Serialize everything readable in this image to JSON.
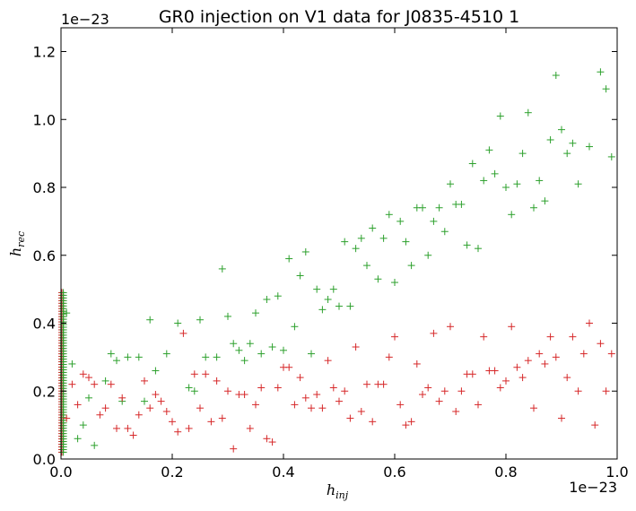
{
  "chart_data": {
    "type": "scatter",
    "title": "GR0 injection on V1 data for J0835-4510  1",
    "xlabel": "h_inj",
    "ylabel": "h_rec",
    "x_offset_text": "1e−23",
    "y_offset_text": "1e−23",
    "xlim": [
      0.0,
      1.0
    ],
    "ylim": [
      0.0,
      1.27
    ],
    "x_ticks": [
      "0.0",
      "0.2",
      "0.4",
      "0.6",
      "0.8",
      "1.0"
    ],
    "y_ticks": [
      "0.0",
      "0.2",
      "0.4",
      "0.6",
      "0.8",
      "1.0",
      "1.2"
    ],
    "x_tick_values": [
      0.0,
      0.2,
      0.4,
      0.6,
      0.8,
      1.0
    ],
    "y_tick_values": [
      0.0,
      0.2,
      0.4,
      0.6,
      0.8,
      1.0,
      1.2
    ],
    "marker": "+",
    "grid": false,
    "series": [
      {
        "color": "#2ca02c",
        "points": [
          [
            0.01,
            0.43
          ],
          [
            0.02,
            0.28
          ],
          [
            0.03,
            0.06
          ],
          [
            0.04,
            0.1
          ],
          [
            0.05,
            0.18
          ],
          [
            0.06,
            0.04
          ],
          [
            0.08,
            0.23
          ],
          [
            0.09,
            0.31
          ],
          [
            0.1,
            0.29
          ],
          [
            0.11,
            0.17
          ],
          [
            0.12,
            0.3
          ],
          [
            0.14,
            0.3
          ],
          [
            0.15,
            0.17
          ],
          [
            0.16,
            0.41
          ],
          [
            0.17,
            0.26
          ],
          [
            0.19,
            0.31
          ],
          [
            0.21,
            0.4
          ],
          [
            0.23,
            0.21
          ],
          [
            0.24,
            0.2
          ],
          [
            0.25,
            0.41
          ],
          [
            0.26,
            0.3
          ],
          [
            0.28,
            0.3
          ],
          [
            0.29,
            0.56
          ],
          [
            0.3,
            0.42
          ],
          [
            0.31,
            0.34
          ],
          [
            0.32,
            0.32
          ],
          [
            0.33,
            0.29
          ],
          [
            0.34,
            0.34
          ],
          [
            0.35,
            0.43
          ],
          [
            0.36,
            0.31
          ],
          [
            0.37,
            0.47
          ],
          [
            0.38,
            0.33
          ],
          [
            0.39,
            0.48
          ],
          [
            0.4,
            0.32
          ],
          [
            0.41,
            0.59
          ],
          [
            0.42,
            0.39
          ],
          [
            0.43,
            0.54
          ],
          [
            0.44,
            0.61
          ],
          [
            0.45,
            0.31
          ],
          [
            0.46,
            0.5
          ],
          [
            0.47,
            0.44
          ],
          [
            0.48,
            0.47
          ],
          [
            0.49,
            0.5
          ],
          [
            0.5,
            0.45
          ],
          [
            0.51,
            0.64
          ],
          [
            0.52,
            0.45
          ],
          [
            0.53,
            0.62
          ],
          [
            0.54,
            0.65
          ],
          [
            0.55,
            0.57
          ],
          [
            0.56,
            0.68
          ],
          [
            0.57,
            0.53
          ],
          [
            0.58,
            0.65
          ],
          [
            0.59,
            0.72
          ],
          [
            0.6,
            0.52
          ],
          [
            0.61,
            0.7
          ],
          [
            0.62,
            0.64
          ],
          [
            0.63,
            0.57
          ],
          [
            0.64,
            0.74
          ],
          [
            0.65,
            0.74
          ],
          [
            0.66,
            0.6
          ],
          [
            0.67,
            0.7
          ],
          [
            0.68,
            0.74
          ],
          [
            0.69,
            0.67
          ],
          [
            0.7,
            0.81
          ],
          [
            0.71,
            0.75
          ],
          [
            0.72,
            0.75
          ],
          [
            0.73,
            0.63
          ],
          [
            0.74,
            0.87
          ],
          [
            0.75,
            0.62
          ],
          [
            0.76,
            0.82
          ],
          [
            0.77,
            0.91
          ],
          [
            0.78,
            0.84
          ],
          [
            0.79,
            1.01
          ],
          [
            0.8,
            0.8
          ],
          [
            0.81,
            0.72
          ],
          [
            0.82,
            0.81
          ],
          [
            0.83,
            0.9
          ],
          [
            0.84,
            1.02
          ],
          [
            0.85,
            0.74
          ],
          [
            0.86,
            0.82
          ],
          [
            0.87,
            0.76
          ],
          [
            0.88,
            0.94
          ],
          [
            0.89,
            1.13
          ],
          [
            0.9,
            0.97
          ],
          [
            0.91,
            0.9
          ],
          [
            0.92,
            0.93
          ],
          [
            0.93,
            0.81
          ],
          [
            0.95,
            0.92
          ],
          [
            0.97,
            1.14
          ],
          [
            0.98,
            1.09
          ],
          [
            0.99,
            0.89
          ]
        ]
      },
      {
        "color": "#d62728",
        "points": [
          [
            0.01,
            0.12
          ],
          [
            0.02,
            0.22
          ],
          [
            0.03,
            0.16
          ],
          [
            0.04,
            0.25
          ],
          [
            0.05,
            0.24
          ],
          [
            0.06,
            0.22
          ],
          [
            0.07,
            0.13
          ],
          [
            0.08,
            0.15
          ],
          [
            0.09,
            0.22
          ],
          [
            0.1,
            0.09
          ],
          [
            0.11,
            0.18
          ],
          [
            0.12,
            0.09
          ],
          [
            0.13,
            0.07
          ],
          [
            0.14,
            0.13
          ],
          [
            0.15,
            0.23
          ],
          [
            0.16,
            0.15
          ],
          [
            0.17,
            0.19
          ],
          [
            0.18,
            0.17
          ],
          [
            0.19,
            0.14
          ],
          [
            0.2,
            0.11
          ],
          [
            0.21,
            0.08
          ],
          [
            0.22,
            0.37
          ],
          [
            0.23,
            0.09
          ],
          [
            0.24,
            0.25
          ],
          [
            0.25,
            0.15
          ],
          [
            0.26,
            0.25
          ],
          [
            0.27,
            0.11
          ],
          [
            0.28,
            0.23
          ],
          [
            0.29,
            0.12
          ],
          [
            0.3,
            0.2
          ],
          [
            0.31,
            0.03
          ],
          [
            0.32,
            0.19
          ],
          [
            0.33,
            0.19
          ],
          [
            0.34,
            0.09
          ],
          [
            0.35,
            0.16
          ],
          [
            0.36,
            0.21
          ],
          [
            0.37,
            0.06
          ],
          [
            0.38,
            0.05
          ],
          [
            0.39,
            0.21
          ],
          [
            0.4,
            0.27
          ],
          [
            0.41,
            0.27
          ],
          [
            0.42,
            0.16
          ],
          [
            0.43,
            0.24
          ],
          [
            0.44,
            0.18
          ],
          [
            0.45,
            0.15
          ],
          [
            0.46,
            0.19
          ],
          [
            0.47,
            0.15
          ],
          [
            0.48,
            0.29
          ],
          [
            0.49,
            0.21
          ],
          [
            0.5,
            0.17
          ],
          [
            0.51,
            0.2
          ],
          [
            0.52,
            0.12
          ],
          [
            0.53,
            0.33
          ],
          [
            0.54,
            0.14
          ],
          [
            0.55,
            0.22
          ],
          [
            0.56,
            0.11
          ],
          [
            0.57,
            0.22
          ],
          [
            0.58,
            0.22
          ],
          [
            0.59,
            0.3
          ],
          [
            0.6,
            0.36
          ],
          [
            0.61,
            0.16
          ],
          [
            0.62,
            0.1
          ],
          [
            0.63,
            0.11
          ],
          [
            0.64,
            0.28
          ],
          [
            0.65,
            0.19
          ],
          [
            0.66,
            0.21
          ],
          [
            0.67,
            0.37
          ],
          [
            0.68,
            0.17
          ],
          [
            0.69,
            0.2
          ],
          [
            0.7,
            0.39
          ],
          [
            0.71,
            0.14
          ],
          [
            0.72,
            0.2
          ],
          [
            0.73,
            0.25
          ],
          [
            0.74,
            0.25
          ],
          [
            0.75,
            0.16
          ],
          [
            0.76,
            0.36
          ],
          [
            0.77,
            0.26
          ],
          [
            0.78,
            0.26
          ],
          [
            0.79,
            0.21
          ],
          [
            0.8,
            0.23
          ],
          [
            0.81,
            0.39
          ],
          [
            0.82,
            0.27
          ],
          [
            0.83,
            0.24
          ],
          [
            0.84,
            0.29
          ],
          [
            0.85,
            0.15
          ],
          [
            0.86,
            0.31
          ],
          [
            0.87,
            0.28
          ],
          [
            0.88,
            0.36
          ],
          [
            0.89,
            0.3
          ],
          [
            0.9,
            0.12
          ],
          [
            0.91,
            0.24
          ],
          [
            0.92,
            0.36
          ],
          [
            0.93,
            0.2
          ],
          [
            0.94,
            0.31
          ],
          [
            0.95,
            0.4
          ],
          [
            0.96,
            0.1
          ],
          [
            0.97,
            0.34
          ],
          [
            0.98,
            0.2
          ],
          [
            0.99,
            0.31
          ]
        ]
      }
    ],
    "edge_cluster": {
      "x": 0.0,
      "y_min": 0.02,
      "y_max": 0.49,
      "colors": [
        "#d62728",
        "#2ca02c"
      ]
    }
  }
}
